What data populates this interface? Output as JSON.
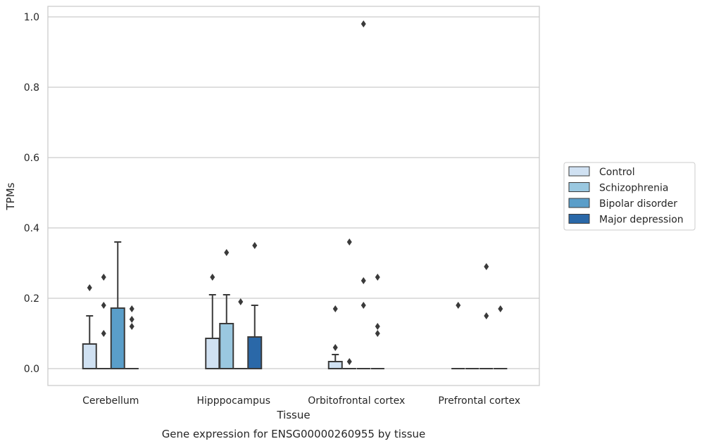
{
  "chart_data": {
    "type": "box",
    "xlabel": "Tissue",
    "ylabel": "TPMs",
    "caption": "Gene expression for ENSG00000260955 by tissue",
    "ylim": [
      -0.045,
      1.03
    ],
    "yticks": [
      "0.0",
      "0.2",
      "0.4",
      "0.6",
      "0.8",
      "1.0"
    ],
    "ytick_values": [
      0.0,
      0.2,
      0.4,
      0.6,
      0.8,
      1.0
    ],
    "grid": true,
    "legend_position": "right",
    "categories": [
      "Cerebellum",
      "Hipppocampus",
      "Orbitofrontal cortex",
      "Prefrontal cortex"
    ],
    "series": [
      {
        "name": "Control",
        "color": "#d0e1f2",
        "boxes": [
          {
            "q1": 0,
            "median": 0,
            "q3": 0.07,
            "whisker_low": 0,
            "whisker_high": 0.15,
            "outliers": [
              0.23
            ]
          },
          {
            "q1": 0,
            "median": 0,
            "q3": 0.086,
            "whisker_low": 0,
            "whisker_high": 0.21,
            "outliers": [
              0.26
            ]
          },
          {
            "q1": 0,
            "median": 0,
            "q3": 0.02,
            "whisker_low": 0,
            "whisker_high": 0.04,
            "outliers": [
              0.06,
              0.17
            ]
          },
          {
            "q1": 0,
            "median": 0,
            "q3": 0,
            "whisker_low": 0,
            "whisker_high": 0,
            "outliers": [
              0.18
            ]
          }
        ]
      },
      {
        "name": "Schizophrenia",
        "color": "#9ac8e0",
        "boxes": [
          {
            "q1": 0,
            "median": 0,
            "q3": 0,
            "whisker_low": 0,
            "whisker_high": 0,
            "outliers": [
              0.1,
              0.18,
              0.26
            ]
          },
          {
            "q1": 0,
            "median": 0,
            "q3": 0.128,
            "whisker_low": 0,
            "whisker_high": 0.21,
            "outliers": [
              0.33
            ]
          },
          {
            "q1": 0,
            "median": 0,
            "q3": 0,
            "whisker_low": 0,
            "whisker_high": 0,
            "outliers": [
              0.02,
              0.36
            ]
          },
          {
            "q1": 0,
            "median": 0,
            "q3": 0,
            "whisker_low": 0,
            "whisker_high": 0,
            "outliers": []
          }
        ]
      },
      {
        "name": "Bipolar disorder",
        "color": "#5a9ec9",
        "boxes": [
          {
            "q1": 0,
            "median": 0,
            "q3": 0.172,
            "whisker_low": 0,
            "whisker_high": 0.36,
            "outliers": []
          },
          {
            "q1": 0,
            "median": 0,
            "q3": 0,
            "whisker_low": 0,
            "whisker_high": 0,
            "outliers": [
              0.19
            ]
          },
          {
            "q1": 0,
            "median": 0,
            "q3": 0,
            "whisker_low": 0,
            "whisker_high": 0,
            "outliers": [
              0.18,
              0.25,
              0.98
            ]
          },
          {
            "q1": 0,
            "median": 0,
            "q3": 0,
            "whisker_low": 0,
            "whisker_high": 0,
            "outliers": [
              0.15,
              0.29
            ]
          }
        ]
      },
      {
        "name": "Major depression",
        "color": "#2a68a8",
        "boxes": [
          {
            "q1": 0,
            "median": 0,
            "q3": 0,
            "whisker_low": 0,
            "whisker_high": 0,
            "outliers": [
              0.12,
              0.14,
              0.17
            ]
          },
          {
            "q1": 0,
            "median": 0,
            "q3": 0.09,
            "whisker_low": 0,
            "whisker_high": 0.18,
            "outliers": [
              0.35
            ]
          },
          {
            "q1": 0,
            "median": 0,
            "q3": 0,
            "whisker_low": 0,
            "whisker_high": 0,
            "outliers": [
              0.1,
              0.12,
              0.26
            ]
          },
          {
            "q1": 0,
            "median": 0,
            "q3": 0,
            "whisker_low": 0,
            "whisker_high": 0,
            "outliers": [
              0.17
            ]
          }
        ]
      }
    ]
  }
}
